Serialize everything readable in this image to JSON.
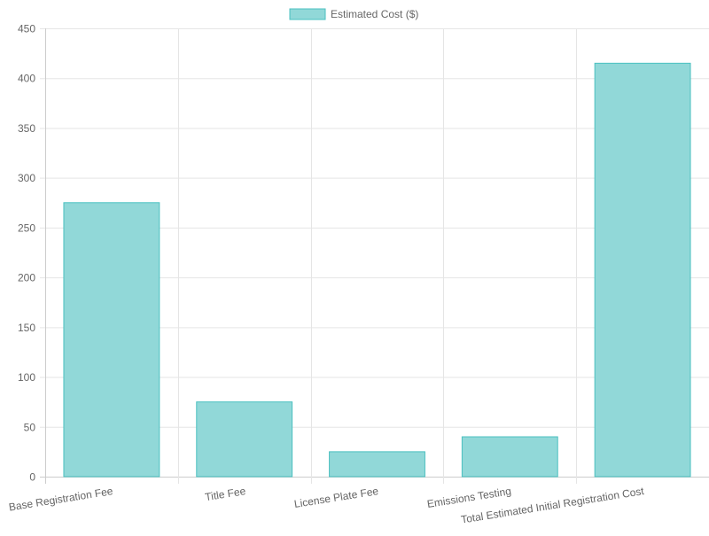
{
  "chart_data": {
    "type": "bar",
    "legend_position": "top",
    "series": [
      {
        "name": "Estimated Cost ($)",
        "color": "#91d8d8",
        "border_color": "#4bc0c0",
        "values": [
          275,
          75,
          25,
          40,
          415
        ]
      }
    ],
    "categories": [
      "Base Registration Fee",
      "Title Fee",
      "License Plate Fee",
      "Emissions Testing",
      "Total Estimated Initial Registration Cost"
    ],
    "ylim": [
      0,
      450
    ],
    "y_ticks": [
      0,
      50,
      100,
      150,
      200,
      250,
      300,
      350,
      400,
      450
    ],
    "grid": true,
    "x_tick_rotation": "slanted"
  },
  "colors": {
    "grid": "#e5e5e5",
    "axis": "#cccccc",
    "text": "#666666"
  }
}
